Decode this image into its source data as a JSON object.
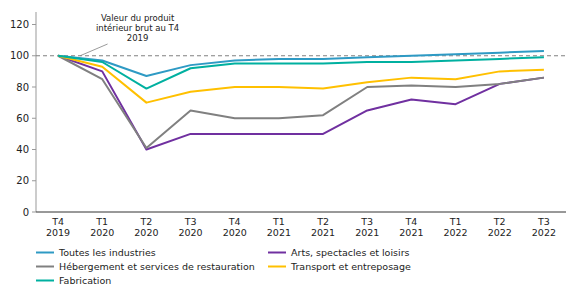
{
  "chart_data": {
    "type": "line",
    "categories": [
      "T4\n2019",
      "T1\n2020",
      "T2\n2020",
      "T3\n2020",
      "T4\n2020",
      "T1\n2021",
      "T2\n2021",
      "T3\n2021",
      "T4\n2021",
      "T1\n2022",
      "T2\n2022",
      "T3\n2022"
    ],
    "series": [
      {
        "name": "Toutes les industries",
        "color": "#2E9AC4",
        "values": [
          100,
          97,
          87,
          94,
          97,
          98,
          98,
          99,
          100,
          101,
          102,
          103
        ]
      },
      {
        "name": "Arts, spectacles et loisirs",
        "color": "#7030A0",
        "values": [
          100,
          90,
          40,
          50,
          50,
          50,
          50,
          65,
          72,
          69,
          82,
          86
        ]
      },
      {
        "name": "Hébergement et services de restauration",
        "color": "#808080",
        "values": [
          100,
          85,
          41,
          65,
          60,
          60,
          62,
          80,
          81,
          80,
          82,
          86
        ]
      },
      {
        "name": "Transport et entreposage",
        "color": "#FFC000",
        "values": [
          100,
          93,
          70,
          77,
          80,
          80,
          79,
          83,
          86,
          85,
          90,
          91
        ]
      },
      {
        "name": "Fabrication",
        "color": "#00B0A0",
        "values": [
          100,
          96,
          79,
          92,
          95,
          95,
          95,
          96,
          96,
          97,
          98,
          99
        ]
      }
    ],
    "annotations": [
      {
        "text": "Valeur du produit\nintérieur brut au T4\n2019",
        "y": 100
      }
    ],
    "ylim": [
      0,
      128
    ],
    "yticks": [
      0,
      20,
      40,
      60,
      80,
      100,
      120
    ],
    "grid": false,
    "legend": "bottom"
  }
}
